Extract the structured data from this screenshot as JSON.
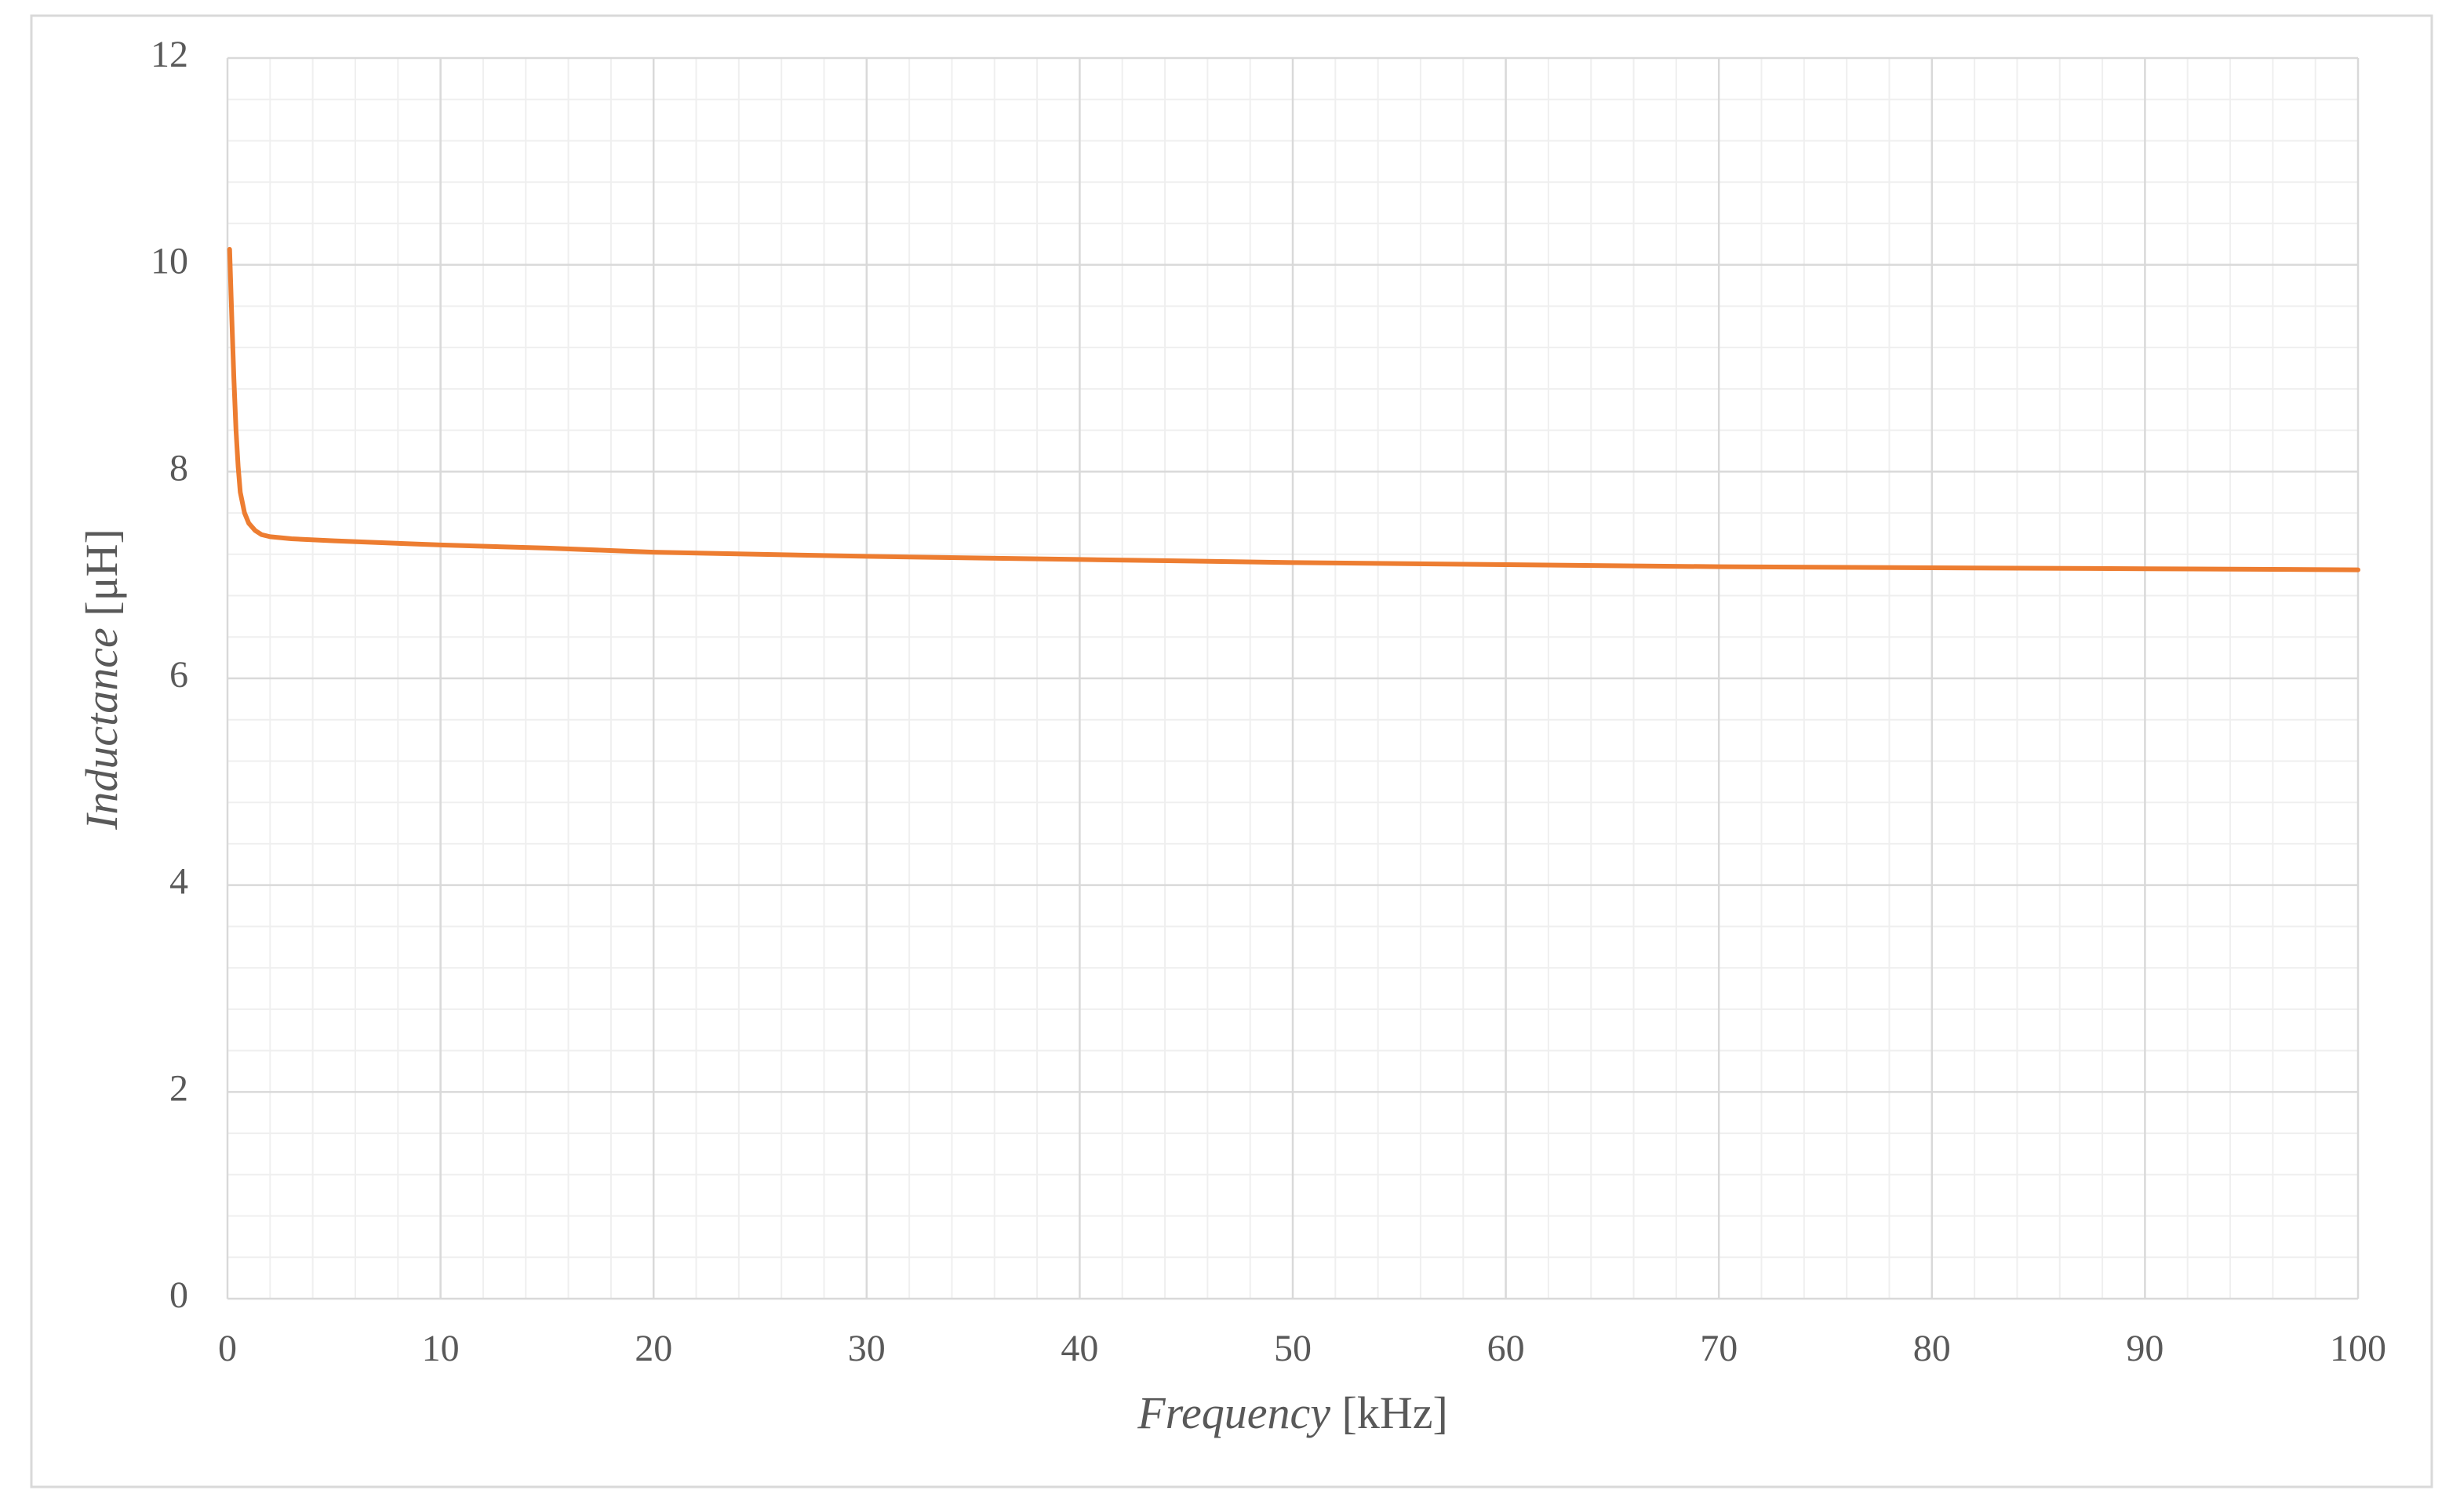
{
  "chart_data": {
    "type": "line",
    "xlabel": "Frequency [kHz]",
    "ylabel": "Inductance [μH]",
    "x": [
      0.1,
      0.2,
      0.3,
      0.4,
      0.5,
      0.6,
      0.8,
      1,
      1.3,
      1.6,
      2,
      3,
      5,
      10,
      15,
      20,
      30,
      40,
      50,
      60,
      70,
      80,
      90,
      100
    ],
    "series": [
      {
        "color": "#ed7d31",
        "values": [
          10.15,
          9.5,
          8.9,
          8.4,
          8.05,
          7.8,
          7.6,
          7.5,
          7.43,
          7.39,
          7.37,
          7.35,
          7.33,
          7.29,
          7.26,
          7.22,
          7.18,
          7.15,
          7.12,
          7.1,
          7.08,
          7.07,
          7.06,
          7.05
        ]
      }
    ],
    "xlim": [
      0,
      100
    ],
    "xticks": [
      0,
      10,
      20,
      30,
      40,
      50,
      60,
      70,
      80,
      90,
      100
    ],
    "ylim": [
      0,
      12
    ],
    "yticks": [
      0,
      2,
      4,
      6,
      8,
      10,
      12
    ],
    "xminorticks": [
      2,
      4,
      6,
      8,
      12,
      14,
      16,
      18,
      22,
      24,
      26,
      28,
      32,
      34,
      36,
      38,
      42,
      44,
      46,
      48,
      52,
      54,
      56,
      58,
      62,
      64,
      66,
      68,
      72,
      74,
      76,
      78,
      82,
      84,
      86,
      88,
      92,
      94,
      96,
      98
    ],
    "yminorticks": [
      0.4,
      0.8,
      1.2,
      1.6,
      2.4,
      2.8,
      3.2,
      3.6,
      4.4,
      4.8,
      5.2,
      5.6,
      6.4,
      6.8,
      7.2,
      7.6,
      8.4,
      8.8,
      9.2,
      9.6,
      10.4,
      10.8,
      11.2,
      11.6
    ],
    "grid": true
  }
}
